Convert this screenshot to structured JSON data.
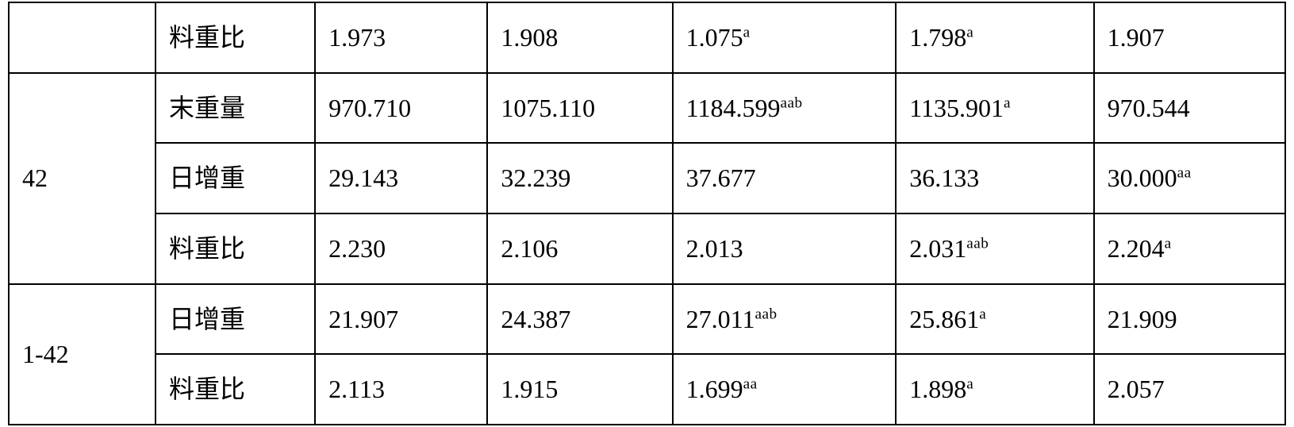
{
  "table": {
    "rows": [
      {
        "col0": "",
        "col1": "料重比",
        "col2": "1.973",
        "col3": "1.908",
        "col4": {
          "v": "1.075",
          "s": "a"
        },
        "col5": {
          "v": "1.798",
          "s": "a"
        },
        "col6": "1.907"
      },
      {
        "col0": "42",
        "col1": "末重量",
        "col2": "970.710",
        "col3": "1075.110",
        "col4": {
          "v": "1184.599",
          "s": "aab"
        },
        "col5": {
          "v": "1135.901",
          "s": "a"
        },
        "col6": "970.544"
      },
      {
        "col0": null,
        "col1": "日增重",
        "col2": "29.143",
        "col3": "32.239",
        "col4": "37.677",
        "col5": "36.133",
        "col6": {
          "v": "30.000",
          "s": "aa"
        }
      },
      {
        "col0": null,
        "col1": "料重比",
        "col2": "2.230",
        "col3": "2.106",
        "col4": "2.013",
        "col5": {
          "v": "2.031",
          "s": "aab"
        },
        "col6": {
          "v": "2.204",
          "s": "a"
        }
      },
      {
        "col0": "1-42",
        "col1": "日增重",
        "col2": "21.907",
        "col3": "24.387",
        "col4": {
          "v": "27.011",
          "s": "aab"
        },
        "col5": {
          "v": "25.861",
          "s": "a"
        },
        "col6": "21.909"
      },
      {
        "col0": null,
        "col1": "料重比",
        "col2": "2.113",
        "col3": "1.915",
        "col4": {
          "v": "1.699",
          "s": "aa"
        },
        "col5": {
          "v": "1.898",
          "s": "a"
        },
        "col6": "2.057"
      }
    ],
    "colors": {
      "border": "#000000",
      "text": "#000000",
      "background": "#ffffff"
    },
    "font_size_pt": 24,
    "superscript_scale": 0.6
  }
}
